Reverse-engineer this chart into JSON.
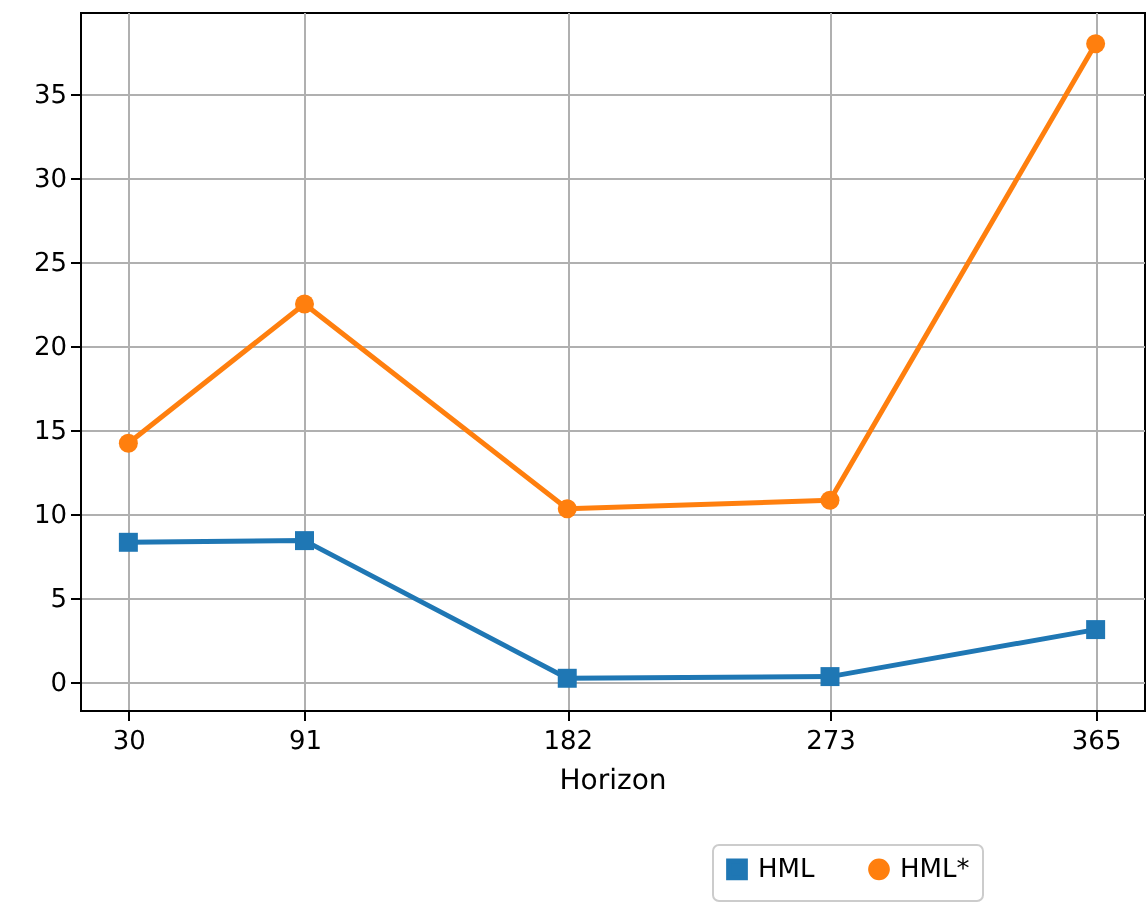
{
  "chart_data": {
    "type": "line",
    "xlabel": "Horizon",
    "x": [
      30,
      91,
      182,
      273,
      365
    ],
    "series": [
      {
        "name": "HML",
        "color": "#1f77b4",
        "marker": "square",
        "values": [
          8.3,
          8.4,
          0.2,
          0.3,
          3.1
        ]
      },
      {
        "name": "HML*",
        "color": "#ff7f0e",
        "marker": "circle",
        "values": [
          14.2,
          22.5,
          10.3,
          10.8,
          38.0
        ]
      }
    ],
    "xlim": [
      13.25,
      381.75
    ],
    "xticks": [
      30,
      91,
      182,
      273,
      365
    ],
    "ylim": [
      -1.69,
      39.89
    ],
    "yticks": [
      0,
      5,
      10,
      15,
      20,
      25,
      30,
      35
    ],
    "grid": true,
    "legend": "bottom right",
    "line_style": "solid"
  }
}
